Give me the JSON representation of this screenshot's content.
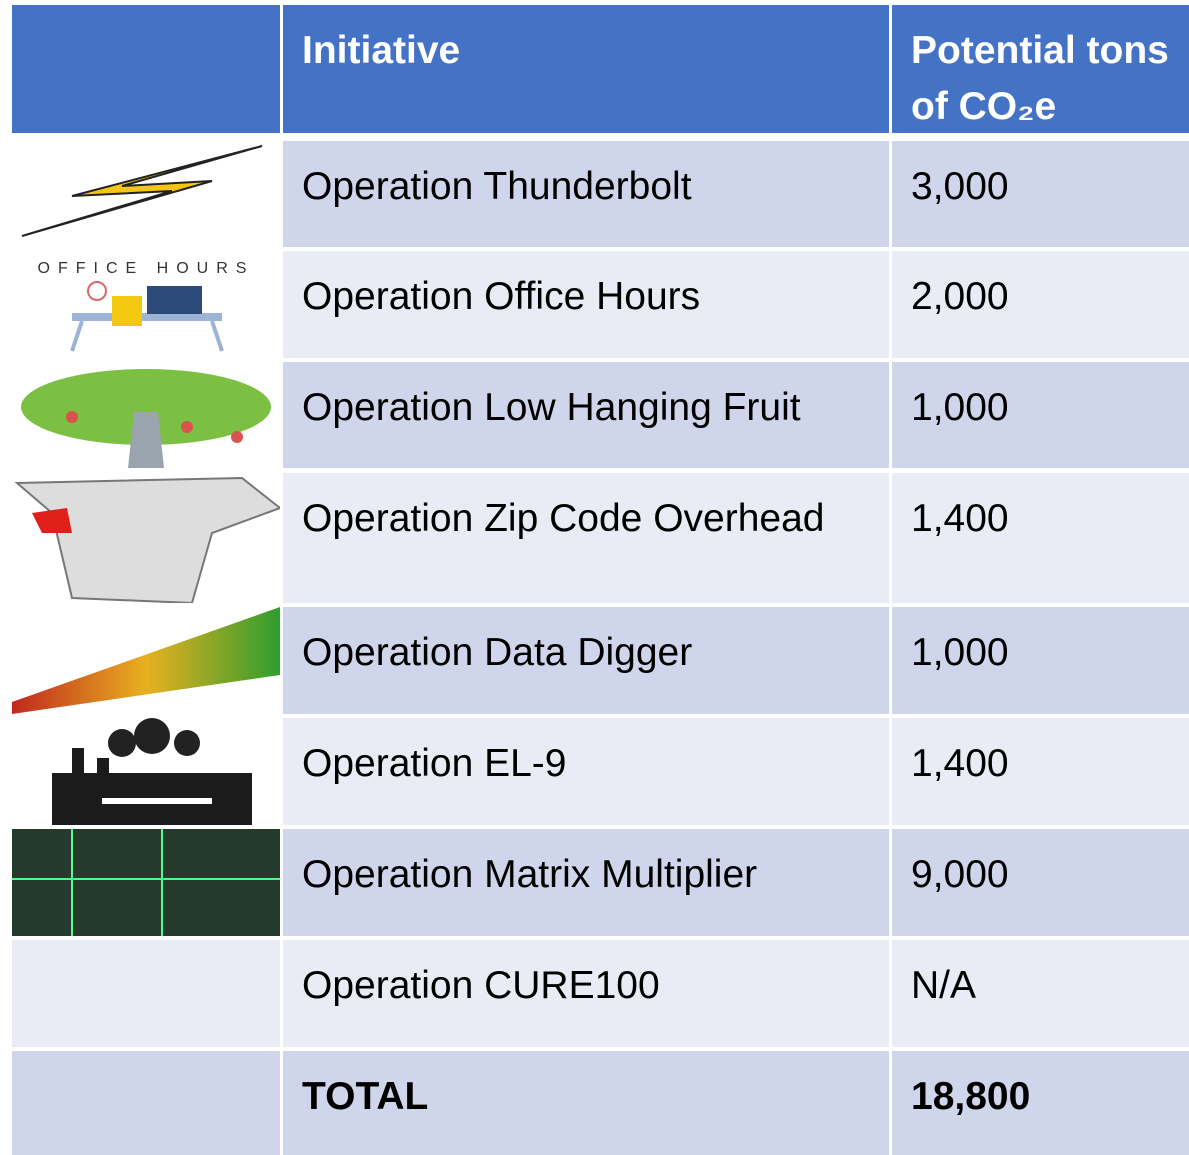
{
  "table": {
    "header": [
      "Initiative",
      "Potential tons of CO₂e"
    ],
    "rows": [
      {
        "icon_label": null,
        "initiative": "Operation Thunderbolt",
        "tons": "3,000"
      },
      {
        "icon_label": "OFFICE HOURS",
        "initiative": "Operation Office Hours",
        "tons": "2,000"
      },
      {
        "icon_label": null,
        "initiative": "Operation Low Hanging Fruit",
        "tons": "1,000"
      },
      {
        "icon_label": null,
        "initiative": "Operation Zip Code Overhead",
        "tons": "1,400"
      },
      {
        "icon_label": null,
        "initiative": "Operation Data Digger",
        "tons": "1,000"
      },
      {
        "icon_label": null,
        "initiative": "Operation EL-9",
        "tons": "1,400"
      },
      {
        "icon_label": null,
        "initiative": "Operation Matrix Multiplier",
        "tons": "9,000"
      },
      {
        "icon_label": null,
        "initiative": "Operation CURE100",
        "tons": "N/A"
      }
    ],
    "total": {
      "initiative": "TOTAL",
      "tons": "18,800"
    }
  }
}
